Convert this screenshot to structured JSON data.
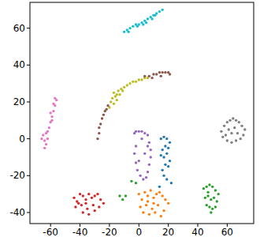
{
  "chart_data": {
    "type": "scatter",
    "xlim": [
      -74,
      78
    ],
    "ylim": [
      -46,
      74
    ],
    "xticks": [
      -60,
      -40,
      -20,
      0,
      20,
      40,
      60
    ],
    "yticks": [
      -40,
      -20,
      0,
      20,
      40,
      60
    ],
    "grid": false,
    "series": [
      {
        "color": "#17becf",
        "x": [
          -10,
          -8,
          -6,
          -4,
          -2,
          0,
          2,
          4,
          6,
          8,
          10,
          12,
          14,
          16,
          -7,
          -1,
          5,
          11,
          3,
          9
        ],
        "values": [
          58,
          59,
          60,
          61,
          62,
          62,
          63,
          64,
          65,
          66,
          67,
          68,
          69,
          70,
          58,
          61,
          63,
          67,
          62,
          65
        ]
      },
      {
        "color": "#9467bd",
        "x": [
          -3,
          -2,
          0,
          2,
          4,
          6,
          7,
          8,
          8,
          7,
          6,
          5,
          3,
          1,
          -1,
          -2,
          -3,
          -2,
          0,
          4,
          2,
          6
        ],
        "values": [
          3,
          4,
          4,
          4,
          3,
          2,
          -2,
          -6,
          -10,
          -14,
          -18,
          -21,
          -22,
          -20,
          -17,
          -13,
          -8,
          -4,
          -12,
          -8,
          0,
          -4
        ]
      },
      {
        "color": "#1f77b4",
        "x": [
          15,
          17,
          19,
          21,
          20,
          18,
          16,
          15,
          17,
          19,
          21,
          20,
          18,
          16,
          17,
          19,
          22,
          14
        ],
        "values": [
          0,
          1,
          0,
          -2,
          -5,
          -4,
          -6,
          -9,
          -10,
          -8,
          -12,
          -15,
          -14,
          -17,
          -20,
          -22,
          -24,
          -26
        ]
      },
      {
        "color": "#7f7f7f",
        "x": [
          56,
          58,
          60,
          62,
          64,
          66,
          68,
          70,
          72,
          57,
          60,
          63,
          66,
          69,
          61,
          65,
          67,
          59,
          63,
          71
        ],
        "values": [
          4,
          7,
          9,
          10,
          11,
          10,
          9,
          7,
          5,
          1,
          -1,
          -2,
          -1,
          0,
          5,
          6,
          3,
          2,
          3,
          2
        ]
      },
      {
        "color": "#d62728",
        "x": [
          -44,
          -42,
          -40,
          -38,
          -36,
          -34,
          -32,
          -30,
          -28,
          -26,
          -24,
          -43,
          -39,
          -35,
          -31,
          -27,
          -38,
          -34,
          -30,
          -41,
          -36
        ],
        "values": [
          -32,
          -34,
          -30,
          -31,
          -33,
          -30,
          -32,
          -31,
          -30,
          -33,
          -35,
          -37,
          -36,
          -38,
          -36,
          -37,
          -40,
          -41,
          -39,
          -35,
          -35
        ]
      },
      {
        "color": "#ff7f0e",
        "x": [
          0,
          2,
          4,
          6,
          8,
          10,
          12,
          14,
          16,
          18,
          20,
          1,
          5,
          9,
          13,
          17,
          3,
          7,
          11,
          15,
          6,
          10
        ],
        "values": [
          -30,
          -33,
          -29,
          -31,
          -28,
          -32,
          -30,
          -29,
          -31,
          -33,
          -35,
          -37,
          -36,
          -38,
          -36,
          -39,
          -40,
          -41,
          -40,
          -42,
          -34,
          -35
        ]
      },
      {
        "color": "#2ca02c",
        "x": [
          -13,
          -11,
          -9,
          -5,
          -2,
          44,
          46,
          48,
          50,
          52,
          54,
          45,
          47,
          49,
          51,
          53,
          46,
          48,
          50,
          52,
          49,
          47
        ],
        "values": [
          -31,
          -33,
          -31,
          -23,
          -24,
          -27,
          -26,
          -25,
          -26,
          -28,
          -30,
          -32,
          -31,
          -33,
          -32,
          -34,
          -36,
          -37,
          -38,
          -37,
          -40,
          -29
        ]
      },
      {
        "color": "#e377c2",
        "x": [
          -65,
          -64,
          -63,
          -62,
          -61,
          -60,
          -59,
          -58,
          -57,
          -56,
          -58,
          -60,
          -63,
          -64,
          -66,
          -62,
          -59,
          -57
        ],
        "values": [
          2,
          -1,
          3,
          0,
          6,
          9,
          12,
          15,
          18,
          21,
          19,
          14,
          -3,
          -5,
          0,
          4,
          10,
          22
        ]
      },
      {
        "color": "#bcbd22",
        "x": [
          -20,
          -19,
          -18,
          -17,
          -16,
          -15,
          -14,
          -13,
          -12,
          -10,
          -8,
          -6,
          -4,
          -2,
          0,
          2,
          4,
          6,
          -17,
          -15,
          -11
        ],
        "values": [
          17,
          20,
          22,
          25,
          23,
          21,
          26,
          24,
          27,
          28,
          29,
          30,
          31,
          31,
          32,
          32,
          33,
          33,
          19,
          24,
          26
        ]
      },
      {
        "color": "#8c564b",
        "x": [
          -28,
          -27,
          -27,
          -26,
          -25,
          -24,
          -23,
          -22,
          -21,
          4,
          7,
          10,
          12,
          14,
          16,
          18,
          20,
          21,
          9,
          15
        ],
        "values": [
          0,
          3,
          6,
          8,
          11,
          13,
          15,
          16,
          18,
          34,
          34,
          35,
          35,
          36,
          36,
          36,
          36,
          35,
          33,
          34
        ]
      }
    ]
  }
}
